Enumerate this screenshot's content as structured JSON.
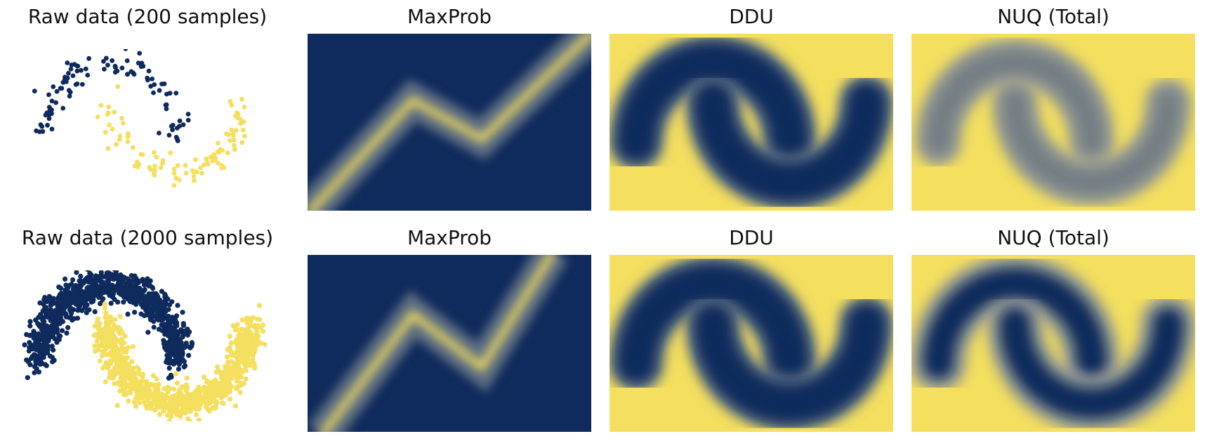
{
  "colors": {
    "navy": "#0f2a5c",
    "yellow": "#f4df5f",
    "grey": "#707a82"
  },
  "chart_data": [
    {
      "type": "scatter",
      "title": "Raw data (200 samples)",
      "n_samples": 200,
      "series": [
        {
          "color": "#0f2a5c",
          "shape": "upper-moon"
        },
        {
          "color": "#f4df5f",
          "shape": "lower-moon"
        }
      ]
    },
    {
      "type": "heatmap",
      "title": "MaxProb",
      "background": "#0f2a5c",
      "highlight": "#f4df5f",
      "shape": "zigzag-boundary"
    },
    {
      "type": "heatmap",
      "title": "DDU",
      "background": "#f4df5f",
      "highlight": "#0f2a5c",
      "shape": "two-moons-blobs"
    },
    {
      "type": "heatmap",
      "title": "NUQ (Total)",
      "background": "#f4df5f",
      "highlight": "#707a82",
      "shape": "two-moons-arcs"
    },
    {
      "type": "scatter",
      "title": "Raw data (2000 samples)",
      "n_samples": 2000,
      "series": [
        {
          "color": "#0f2a5c",
          "shape": "upper-moon"
        },
        {
          "color": "#f4df5f",
          "shape": "lower-moon"
        }
      ]
    },
    {
      "type": "heatmap",
      "title": "MaxProb",
      "background": "#0f2a5c",
      "highlight": "#f4df5f",
      "shape": "zigzag-boundary"
    },
    {
      "type": "heatmap",
      "title": "DDU",
      "background": "#f4df5f",
      "highlight": "#0f2a5c",
      "shape": "two-moons-blobs"
    },
    {
      "type": "heatmap",
      "title": "NUQ (Total)",
      "background": "#f4df5f",
      "highlight": "#0f2a5c",
      "shape": "two-moons-arcs"
    }
  ]
}
